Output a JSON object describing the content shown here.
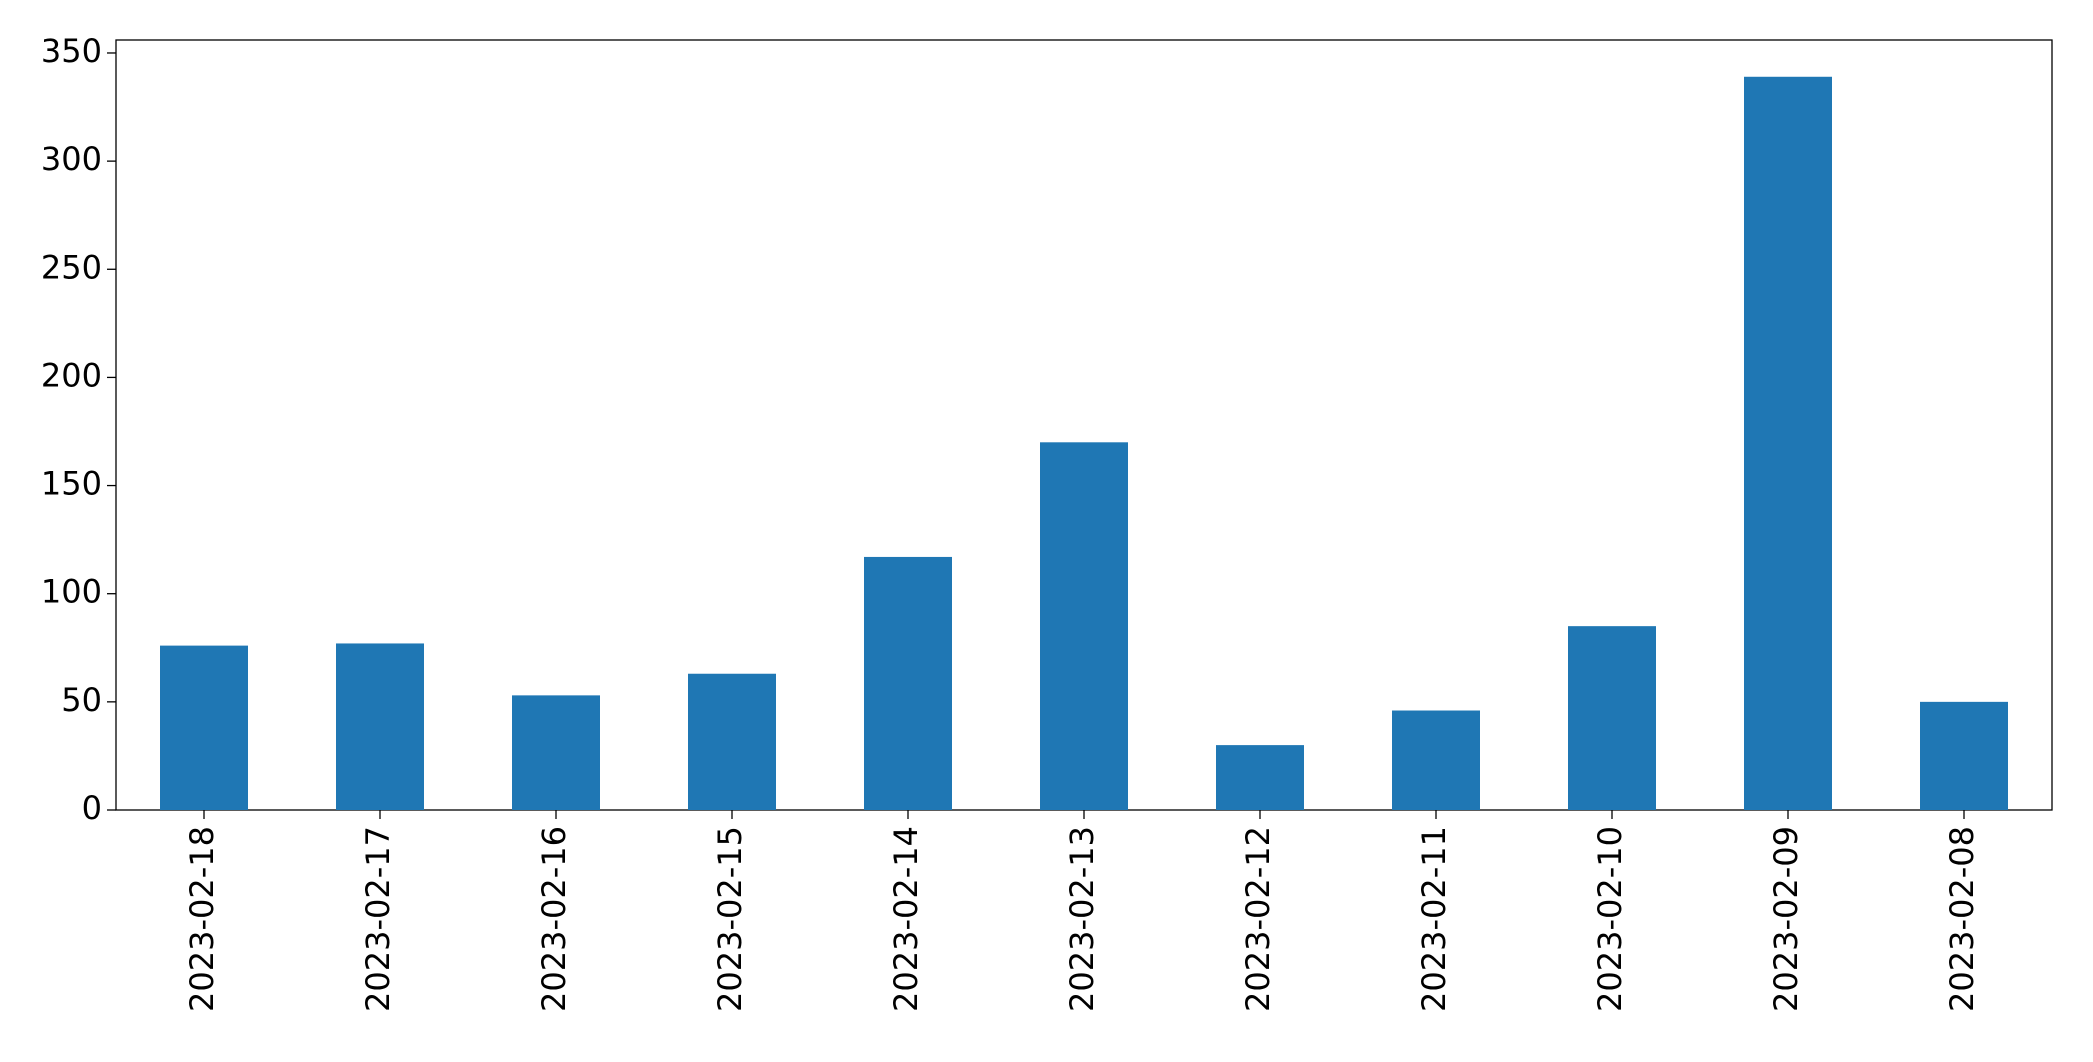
{
  "chart_data": {
    "type": "bar",
    "categories": [
      "2023-02-18",
      "2023-02-17",
      "2023-02-16",
      "2023-02-15",
      "2023-02-14",
      "2023-02-13",
      "2023-02-12",
      "2023-02-11",
      "2023-02-10",
      "2023-02-09",
      "2023-02-08"
    ],
    "values": [
      76,
      77,
      53,
      63,
      117,
      170,
      30,
      46,
      85,
      339,
      50
    ],
    "color": "#1f77b4",
    "ylim": [
      0,
      356
    ],
    "yticks": [
      0,
      50,
      100,
      150,
      200,
      250,
      300,
      350
    ],
    "grid": false
  }
}
